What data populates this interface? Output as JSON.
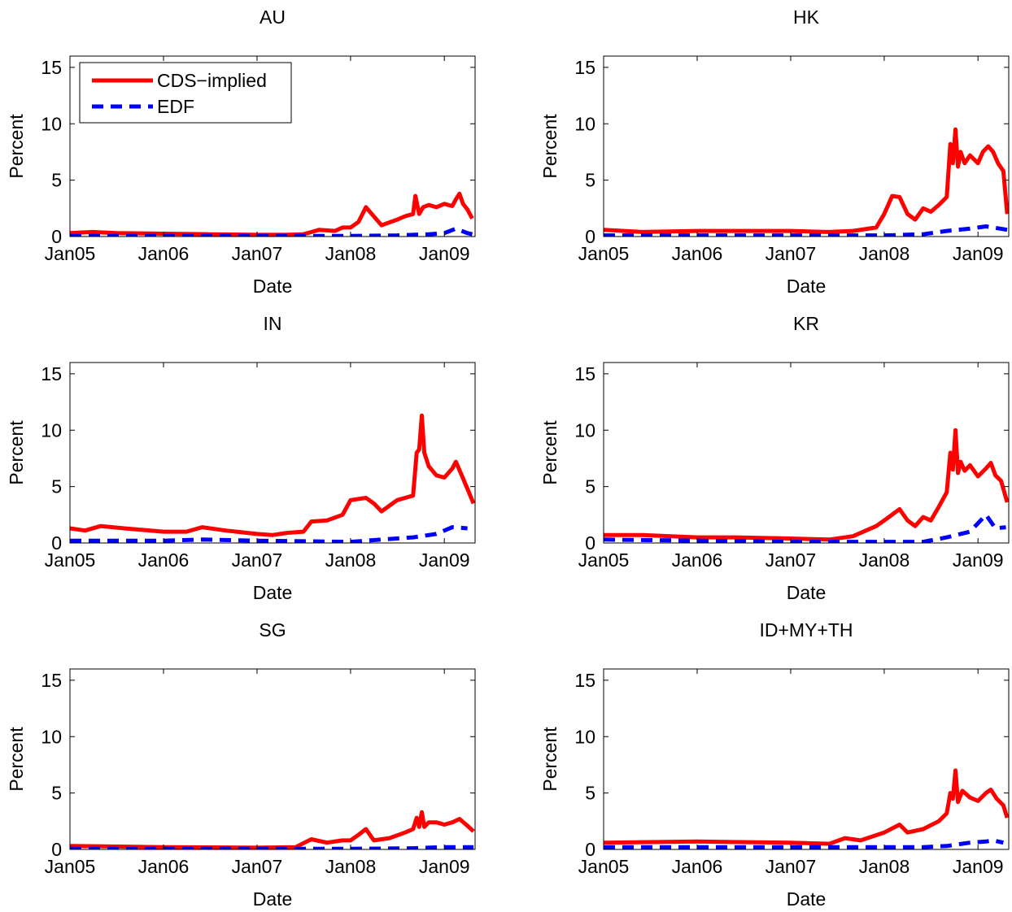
{
  "chart_data": [
    {
      "type": "line",
      "title": "AU",
      "xlabel": "Date",
      "ylabel": "Percent",
      "xlim": [
        "2005-01-01",
        "2009-05-01"
      ],
      "ylim": [
        0,
        16
      ],
      "xticks": [
        "Jan05",
        "Jan06",
        "Jan07",
        "Jan08",
        "Jan09"
      ],
      "yticks": [
        0,
        5,
        10,
        15
      ],
      "legend": {
        "entries": [
          "CDS−implied",
          "EDF"
        ],
        "placement": "top-left"
      },
      "series": [
        {
          "name": "CDS−implied",
          "color": "#ff0000",
          "style": "solid",
          "x": [
            "2005-01-01",
            "2005-04-01",
            "2005-07-01",
            "2006-01-01",
            "2006-07-01",
            "2007-01-01",
            "2007-05-01",
            "2007-07-01",
            "2007-09-01",
            "2007-11-01",
            "2007-12-01",
            "2008-01-01",
            "2008-02-01",
            "2008-03-01",
            "2008-05-01",
            "2008-07-01",
            "2008-08-01",
            "2008-09-01",
            "2008-09-10",
            "2008-09-25",
            "2008-10-10",
            "2008-11-01",
            "2008-12-01",
            "2009-01-01",
            "2009-02-01",
            "2009-02-15",
            "2009-03-01",
            "2009-03-15",
            "2009-04-01",
            "2009-04-20"
          ],
          "y": [
            0.3,
            0.4,
            0.3,
            0.25,
            0.2,
            0.15,
            0.15,
            0.2,
            0.6,
            0.5,
            0.8,
            0.8,
            1.3,
            2.6,
            1.0,
            1.5,
            1.8,
            2.0,
            3.6,
            2.0,
            2.6,
            2.8,
            2.6,
            2.9,
            2.7,
            3.3,
            3.8,
            2.9,
            2.4,
            1.6
          ]
        },
        {
          "name": "EDF",
          "color": "#0000ff",
          "style": "dashed",
          "x": [
            "2005-01-01",
            "2006-01-01",
            "2007-01-01",
            "2008-01-01",
            "2008-07-01",
            "2008-11-01",
            "2009-01-01",
            "2009-02-15",
            "2009-04-01",
            "2009-04-20"
          ],
          "y": [
            0.05,
            0.05,
            0.05,
            0.05,
            0.1,
            0.2,
            0.3,
            0.7,
            0.3,
            0.2
          ]
        }
      ]
    },
    {
      "type": "line",
      "title": "HK",
      "xlabel": "Date",
      "ylabel": "Percent",
      "xlim": [
        "2005-01-01",
        "2009-05-01"
      ],
      "ylim": [
        0,
        16
      ],
      "xticks": [
        "Jan05",
        "Jan06",
        "Jan07",
        "Jan08",
        "Jan09"
      ],
      "yticks": [
        0,
        5,
        10,
        15
      ],
      "series": [
        {
          "name": "CDS−implied",
          "color": "#ff0000",
          "style": "solid",
          "x": [
            "2005-01-01",
            "2005-06-01",
            "2006-01-01",
            "2006-06-01",
            "2007-01-01",
            "2007-06-01",
            "2007-09-01",
            "2007-12-01",
            "2008-01-01",
            "2008-02-01",
            "2008-03-01",
            "2008-04-01",
            "2008-05-01",
            "2008-06-01",
            "2008-07-01",
            "2008-08-01",
            "2008-09-01",
            "2008-09-15",
            "2008-09-25",
            "2008-10-05",
            "2008-10-15",
            "2008-10-25",
            "2008-11-10",
            "2008-12-01",
            "2009-01-01",
            "2009-01-20",
            "2009-02-10",
            "2009-03-01",
            "2009-03-20",
            "2009-04-10",
            "2009-04-25"
          ],
          "y": [
            0.6,
            0.4,
            0.5,
            0.5,
            0.5,
            0.4,
            0.5,
            0.8,
            2.0,
            3.6,
            3.5,
            2.0,
            1.5,
            2.5,
            2.2,
            2.8,
            3.5,
            8.2,
            6.5,
            9.5,
            6.2,
            7.5,
            6.5,
            7.2,
            6.5,
            7.5,
            8.0,
            7.5,
            6.5,
            5.8,
            2.0
          ]
        },
        {
          "name": "EDF",
          "color": "#0000ff",
          "style": "dashed",
          "x": [
            "2005-01-01",
            "2006-01-01",
            "2007-01-01",
            "2008-01-01",
            "2008-06-01",
            "2008-09-01",
            "2008-12-01",
            "2009-02-01",
            "2009-04-25"
          ],
          "y": [
            0.1,
            0.1,
            0.1,
            0.1,
            0.2,
            0.5,
            0.7,
            0.9,
            0.6
          ]
        }
      ]
    },
    {
      "type": "line",
      "title": "IN",
      "xlabel": "Date",
      "ylabel": "Percent",
      "xlim": [
        "2005-01-01",
        "2009-05-01"
      ],
      "ylim": [
        0,
        16
      ],
      "xticks": [
        "Jan05",
        "Jan06",
        "Jan07",
        "Jan08",
        "Jan09"
      ],
      "yticks": [
        0,
        5,
        10,
        15
      ],
      "series": [
        {
          "name": "CDS−implied",
          "color": "#ff0000",
          "style": "solid",
          "x": [
            "2005-01-01",
            "2005-03-01",
            "2005-05-01",
            "2005-08-01",
            "2006-01-01",
            "2006-04-01",
            "2006-06-01",
            "2006-09-01",
            "2007-01-01",
            "2007-03-01",
            "2007-05-01",
            "2007-07-01",
            "2007-08-01",
            "2007-10-01",
            "2007-12-01",
            "2008-01-01",
            "2008-03-01",
            "2008-04-01",
            "2008-05-01",
            "2008-07-01",
            "2008-08-01",
            "2008-09-01",
            "2008-09-15",
            "2008-09-25",
            "2008-10-05",
            "2008-10-15",
            "2008-11-01",
            "2008-12-01",
            "2009-01-01",
            "2009-02-01",
            "2009-02-15",
            "2009-03-10",
            "2009-04-01",
            "2009-04-25"
          ],
          "y": [
            1.3,
            1.1,
            1.5,
            1.3,
            1.0,
            1.0,
            1.4,
            1.1,
            0.8,
            0.7,
            0.9,
            1.0,
            1.9,
            2.0,
            2.5,
            3.8,
            4.0,
            3.5,
            2.8,
            3.8,
            4.0,
            4.2,
            8.0,
            8.3,
            11.3,
            8.0,
            6.8,
            6.0,
            5.8,
            6.6,
            7.2,
            6.0,
            4.8,
            3.5
          ]
        },
        {
          "name": "EDF",
          "color": "#0000ff",
          "style": "dashed",
          "x": [
            "2005-01-01",
            "2006-01-01",
            "2006-06-01",
            "2007-01-01",
            "2008-01-01",
            "2008-03-01",
            "2008-09-01",
            "2008-12-01",
            "2009-02-01",
            "2009-04-01"
          ],
          "y": [
            0.2,
            0.2,
            0.3,
            0.2,
            0.1,
            0.2,
            0.5,
            0.8,
            1.4,
            1.3
          ]
        }
      ]
    },
    {
      "type": "line",
      "title": "KR",
      "xlabel": "Date",
      "ylabel": "Percent",
      "xlim": [
        "2005-01-01",
        "2009-05-01"
      ],
      "ylim": [
        0,
        16
      ],
      "xticks": [
        "Jan05",
        "Jan06",
        "Jan07",
        "Jan08",
        "Jan09"
      ],
      "yticks": [
        0,
        5,
        10,
        15
      ],
      "series": [
        {
          "name": "CDS−implied",
          "color": "#ff0000",
          "style": "solid",
          "x": [
            "2005-01-01",
            "2005-06-01",
            "2006-01-01",
            "2006-06-01",
            "2007-01-01",
            "2007-06-01",
            "2007-09-01",
            "2007-12-01",
            "2008-01-01",
            "2008-03-01",
            "2008-04-01",
            "2008-05-01",
            "2008-06-01",
            "2008-07-01",
            "2008-08-01",
            "2008-09-01",
            "2008-09-15",
            "2008-09-25",
            "2008-10-05",
            "2008-10-15",
            "2008-10-25",
            "2008-11-10",
            "2008-12-01",
            "2009-01-01",
            "2009-02-01",
            "2009-02-20",
            "2009-03-10",
            "2009-04-01",
            "2009-04-25"
          ],
          "y": [
            0.7,
            0.7,
            0.5,
            0.5,
            0.4,
            0.3,
            0.6,
            1.5,
            2.0,
            3.0,
            2.0,
            1.5,
            2.3,
            2.0,
            3.2,
            4.5,
            8.0,
            6.5,
            10.0,
            6.2,
            7.2,
            6.4,
            6.9,
            5.9,
            6.6,
            7.1,
            6.0,
            5.5,
            3.6
          ]
        },
        {
          "name": "EDF",
          "color": "#0000ff",
          "style": "dashed",
          "x": [
            "2005-01-01",
            "2006-01-01",
            "2007-01-01",
            "2008-01-01",
            "2008-06-01",
            "2008-09-01",
            "2008-12-01",
            "2009-02-01",
            "2009-03-10",
            "2009-04-20"
          ],
          "y": [
            0.3,
            0.2,
            0.1,
            0.1,
            0.1,
            0.5,
            1.0,
            2.5,
            1.3,
            1.4
          ]
        }
      ]
    },
    {
      "type": "line",
      "title": "SG",
      "xlabel": "Date",
      "ylabel": "Percent",
      "xlim": [
        "2005-01-01",
        "2009-05-01"
      ],
      "ylim": [
        0,
        16
      ],
      "xticks": [
        "Jan05",
        "Jan06",
        "Jan07",
        "Jan08",
        "Jan09"
      ],
      "yticks": [
        0,
        5,
        10,
        15
      ],
      "series": [
        {
          "name": "CDS−implied",
          "color": "#ff0000",
          "style": "solid",
          "x": [
            "2005-01-01",
            "2006-01-01",
            "2007-01-01",
            "2007-06-01",
            "2007-08-01",
            "2007-10-01",
            "2007-12-01",
            "2008-01-01",
            "2008-02-01",
            "2008-03-01",
            "2008-04-01",
            "2008-06-01",
            "2008-08-01",
            "2008-09-01",
            "2008-09-15",
            "2008-09-25",
            "2008-10-05",
            "2008-10-15",
            "2008-11-01",
            "2008-12-01",
            "2009-01-01",
            "2009-02-01",
            "2009-03-01",
            "2009-04-01",
            "2009-04-25"
          ],
          "y": [
            0.3,
            0.2,
            0.15,
            0.2,
            0.9,
            0.6,
            0.8,
            0.8,
            1.3,
            1.8,
            0.8,
            1.0,
            1.5,
            1.8,
            2.8,
            2.0,
            3.3,
            2.0,
            2.4,
            2.4,
            2.2,
            2.4,
            2.7,
            2.1,
            1.6
          ]
        },
        {
          "name": "EDF",
          "color": "#0000ff",
          "style": "dashed",
          "x": [
            "2005-01-01",
            "2006-01-01",
            "2007-01-01",
            "2008-01-01",
            "2008-09-01",
            "2009-01-01",
            "2009-04-25"
          ],
          "y": [
            0.05,
            0.05,
            0.05,
            0.05,
            0.1,
            0.2,
            0.2
          ]
        }
      ]
    },
    {
      "type": "line",
      "title": "ID+MY+TH",
      "xlabel": "Date",
      "ylabel": "Percent",
      "xlim": [
        "2005-01-01",
        "2009-05-01"
      ],
      "ylim": [
        0,
        16
      ],
      "xticks": [
        "Jan05",
        "Jan06",
        "Jan07",
        "Jan08",
        "Jan09"
      ],
      "yticks": [
        0,
        5,
        10,
        15
      ],
      "series": [
        {
          "name": "CDS−implied",
          "color": "#ff0000",
          "style": "solid",
          "x": [
            "2005-01-01",
            "2006-01-01",
            "2007-01-01",
            "2007-06-01",
            "2007-08-01",
            "2007-10-01",
            "2008-01-01",
            "2008-03-01",
            "2008-04-01",
            "2008-06-01",
            "2008-08-01",
            "2008-09-01",
            "2008-09-15",
            "2008-09-25",
            "2008-10-05",
            "2008-10-15",
            "2008-11-01",
            "2008-12-01",
            "2009-01-01",
            "2009-02-01",
            "2009-02-20",
            "2009-03-15",
            "2009-04-10",
            "2009-04-25"
          ],
          "y": [
            0.6,
            0.7,
            0.6,
            0.5,
            1.0,
            0.8,
            1.5,
            2.2,
            1.5,
            1.8,
            2.5,
            3.2,
            5.0,
            4.5,
            7.0,
            4.2,
            5.2,
            4.6,
            4.3,
            5.0,
            5.3,
            4.5,
            3.9,
            2.8
          ]
        },
        {
          "name": "EDF",
          "color": "#0000ff",
          "style": "dashed",
          "x": [
            "2005-01-01",
            "2006-01-01",
            "2007-01-01",
            "2008-01-01",
            "2008-06-01",
            "2008-09-01",
            "2008-12-01",
            "2009-02-01",
            "2009-03-01",
            "2009-04-10"
          ],
          "y": [
            0.2,
            0.2,
            0.2,
            0.2,
            0.2,
            0.3,
            0.6,
            0.7,
            0.8,
            0.6
          ]
        }
      ]
    }
  ]
}
